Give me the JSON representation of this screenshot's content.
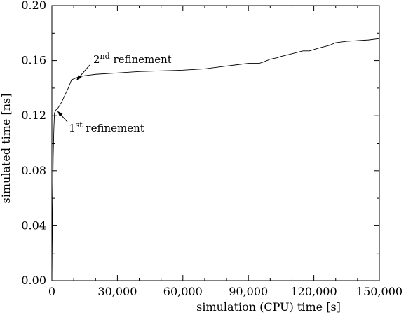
{
  "chart_data": {
    "type": "line",
    "title": "",
    "xlabel": "simulation (CPU) time [s]",
    "ylabel": "simulated time [ns]",
    "xlim": [
      0,
      150000
    ],
    "ylim": [
      0,
      0.2
    ],
    "x_ticks": [
      "0",
      "30,000",
      "60,000",
      "90,000",
      "120,000",
      "150,000"
    ],
    "x_tick_values": [
      0,
      30000,
      60000,
      90000,
      120000,
      150000
    ],
    "y_ticks": [
      "0.00",
      "0.04",
      "0.08",
      "0.12",
      "0.16",
      "0.20"
    ],
    "y_tick_values": [
      0,
      0.04,
      0.08,
      0.12,
      0.16,
      0.2
    ],
    "grid": false,
    "series": [
      {
        "x": [
          0,
          100,
          300,
          600,
          900,
          1200,
          1800,
          3000,
          4500,
          6000,
          7500,
          9000,
          10500,
          12000,
          15000,
          20000,
          30000,
          40000,
          50000,
          60000,
          70000,
          75000,
          80000,
          85000,
          90000,
          95000,
          97000,
          100000,
          103000,
          105000,
          110000,
          115000,
          118000,
          122000,
          127000,
          130000,
          135000,
          140000,
          145000,
          150000
        ],
        "y": [
          0,
          0.02,
          0.05,
          0.09,
          0.11,
          0.122,
          0.124,
          0.126,
          0.13,
          0.135,
          0.14,
          0.146,
          0.147,
          0.148,
          0.149,
          0.15,
          0.151,
          0.152,
          0.1525,
          0.153,
          0.154,
          0.155,
          0.156,
          0.157,
          0.158,
          0.158,
          0.159,
          0.161,
          0.162,
          0.163,
          0.165,
          0.167,
          0.167,
          0.169,
          0.171,
          0.173,
          0.174,
          0.1745,
          0.175,
          0.176
        ]
      }
    ],
    "annotations": [
      {
        "base": "2",
        "sup": "nd",
        "text": " refinement",
        "target": [
          10500,
          0.147
        ]
      },
      {
        "base": "1",
        "sup": "st",
        "text": " refinement",
        "target": [
          1800,
          0.124
        ]
      }
    ]
  }
}
